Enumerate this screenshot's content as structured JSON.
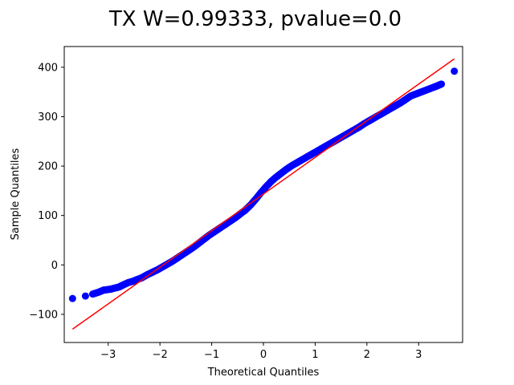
{
  "chart_data": {
    "type": "scatter",
    "title": "TX W=0.99333, pvalue=0.0",
    "xlabel": "Theoretical Quantiles",
    "ylabel": "Sample Quantiles",
    "xlim": [
      -3.85,
      3.85
    ],
    "ylim": [
      -157,
      442
    ],
    "xticks": [
      -3,
      -2,
      -1,
      0,
      1,
      2,
      3
    ],
    "xtick_labels": [
      "−3",
      "−2",
      "−1",
      "0",
      "1",
      "2",
      "3"
    ],
    "yticks": [
      -100,
      0,
      100,
      200,
      300,
      400
    ],
    "ytick_labels": [
      "−100",
      "0",
      "100",
      "200",
      "300",
      "400"
    ],
    "grid": false,
    "series": [
      {
        "kind": "scatter",
        "color": "#0000ff",
        "x": [
          -3.69,
          -3.44,
          -3.3,
          -3.18,
          -3.09,
          -3.02,
          -2.95,
          -2.88,
          -2.8,
          -2.72,
          -2.62,
          -2.52,
          -2.45,
          -2.35,
          -2.25,
          -2.15,
          -2.05,
          -1.95,
          -1.85,
          -1.75,
          -1.65,
          -1.55,
          -1.45,
          -1.35,
          -1.25,
          -1.15,
          -1.05,
          -0.95,
          -0.85,
          -0.75,
          -0.65,
          -0.55,
          -0.45,
          -0.35,
          -0.25,
          -0.15,
          -0.05,
          0.05,
          0.15,
          0.25,
          0.35,
          0.45,
          0.55,
          0.65,
          0.75,
          0.85,
          0.95,
          1.05,
          1.15,
          1.25,
          1.35,
          1.45,
          1.55,
          1.65,
          1.75,
          1.85,
          1.95,
          2.05,
          2.15,
          2.25,
          2.35,
          2.45,
          2.55,
          2.65,
          2.75,
          2.85,
          2.95,
          3.05,
          3.15,
          3.25,
          3.35,
          3.44,
          3.69
        ],
        "y": [
          -68,
          -63,
          -59,
          -55,
          -51,
          -50,
          -49,
          -47,
          -45,
          -41,
          -36,
          -33,
          -30,
          -26,
          -20,
          -15,
          -10,
          -4,
          2,
          8,
          15,
          22,
          29,
          36,
          44,
          52,
          60,
          67,
          74,
          81,
          88,
          95,
          103,
          111,
          121,
          133,
          146,
          158,
          169,
          178,
          186,
          194,
          201,
          207,
          213,
          219,
          225,
          231,
          237,
          243,
          249,
          255,
          261,
          267,
          273,
          279,
          286,
          292,
          298,
          304,
          310,
          316,
          322,
          328,
          335,
          342,
          346,
          350,
          354,
          358,
          362,
          366,
          392
        ]
      },
      {
        "kind": "line",
        "color": "#ff0000",
        "x": [
          -3.69,
          3.69
        ],
        "y": [
          -130,
          417
        ]
      }
    ]
  }
}
